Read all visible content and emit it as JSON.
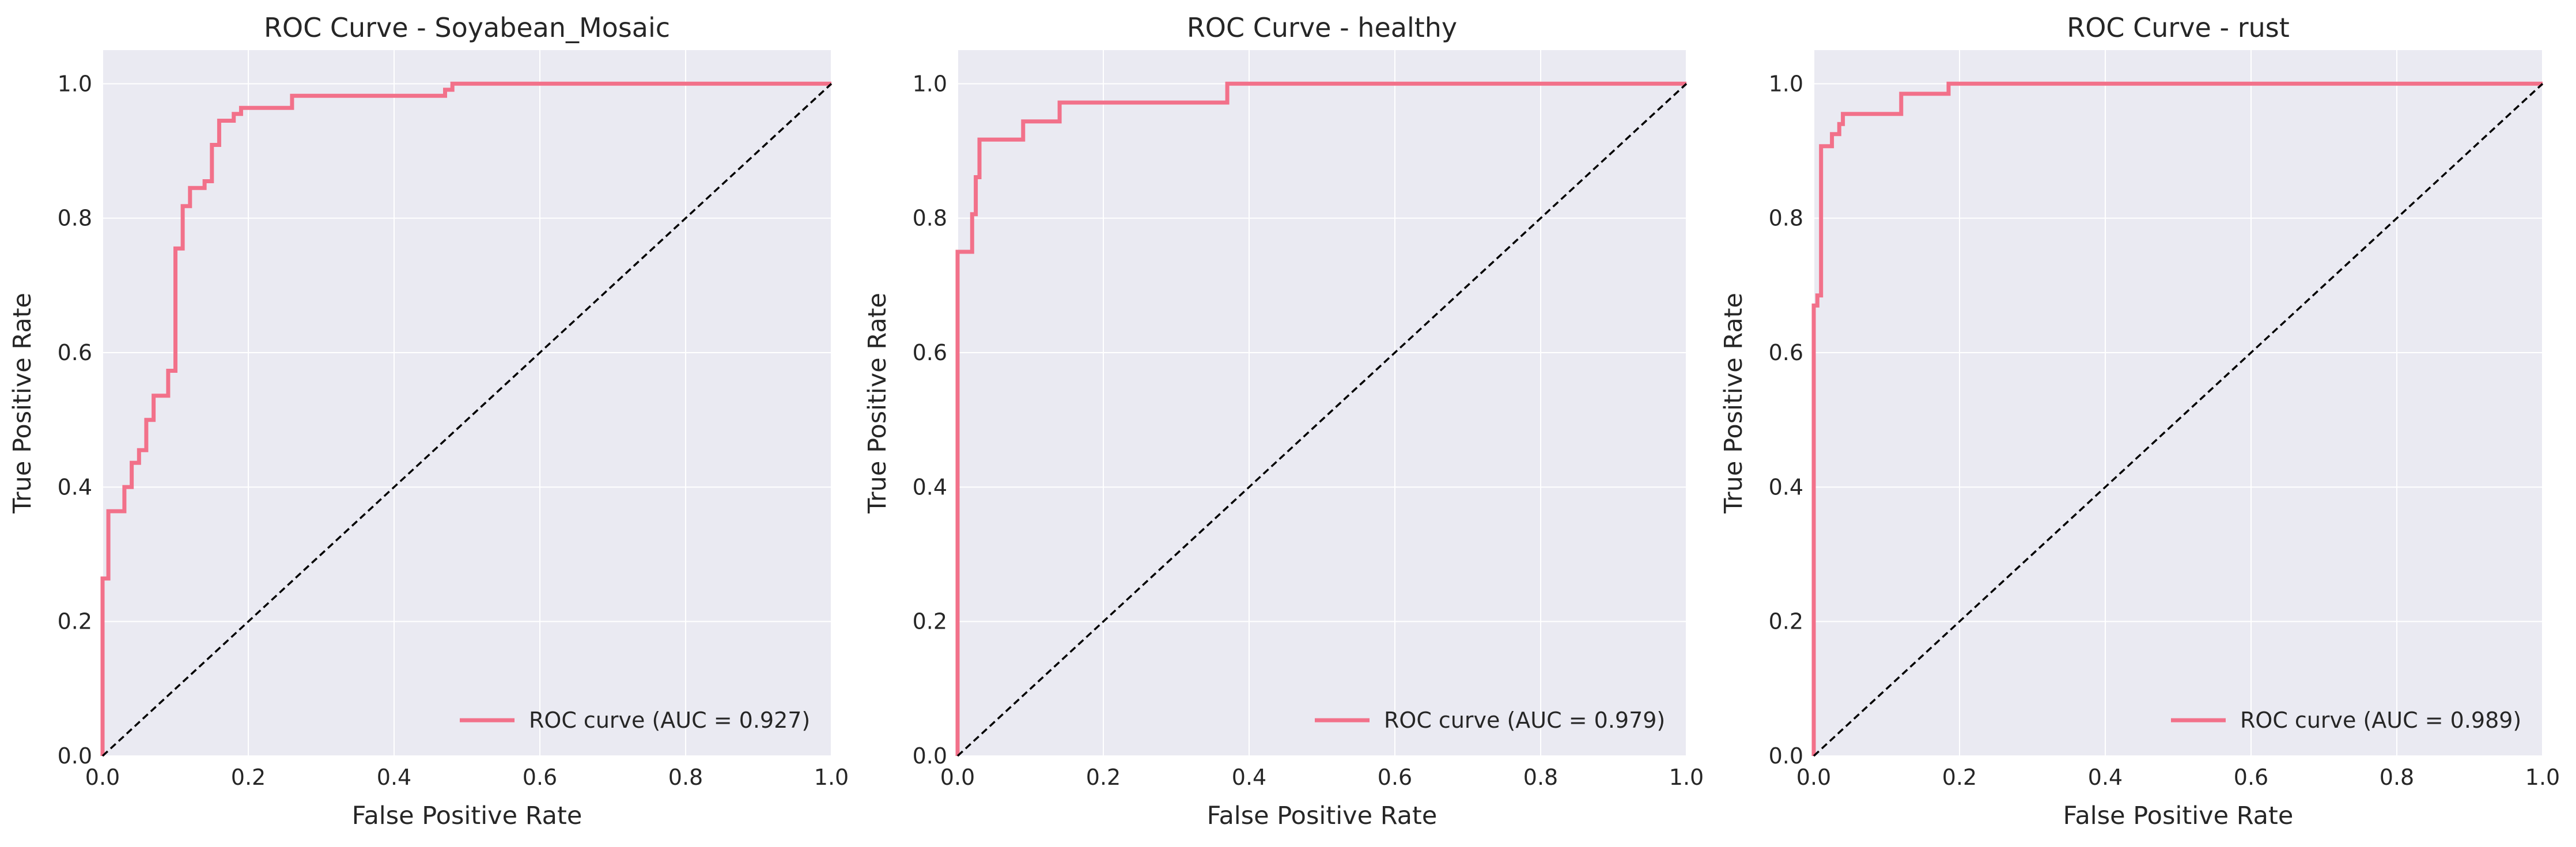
{
  "chart_data": [
    {
      "type": "line",
      "title": "ROC Curve - Soyabean_Mosaic",
      "xlabel": "False Positive Rate",
      "ylabel": "True Positive Rate",
      "xlim": [
        0.0,
        1.0
      ],
      "ylim": [
        0.0,
        1.05
      ],
      "xticks": [
        "0.0",
        "0.2",
        "0.4",
        "0.6",
        "0.8",
        "1.0"
      ],
      "yticks": [
        "0.0",
        "0.2",
        "0.4",
        "0.6",
        "0.8",
        "1.0"
      ],
      "grid": true,
      "legend": "lower-right",
      "series": [
        {
          "name": "ROC curve (AUC = 0.927)",
          "color": "#f2718a",
          "x": [
            0.0,
            0.0,
            0.008,
            0.008,
            0.03,
            0.03,
            0.04,
            0.04,
            0.05,
            0.05,
            0.06,
            0.06,
            0.07,
            0.07,
            0.09,
            0.09,
            0.1,
            0.1,
            0.11,
            0.11,
            0.12,
            0.12,
            0.14,
            0.14,
            0.15,
            0.15,
            0.16,
            0.16,
            0.18,
            0.18,
            0.19,
            0.19,
            0.26,
            0.26,
            0.47,
            0.47,
            0.48,
            0.48,
            1.0
          ],
          "y": [
            0.0,
            0.264,
            0.264,
            0.364,
            0.364,
            0.4,
            0.4,
            0.436,
            0.436,
            0.455,
            0.455,
            0.5,
            0.5,
            0.536,
            0.536,
            0.573,
            0.573,
            0.755,
            0.755,
            0.818,
            0.818,
            0.845,
            0.845,
            0.855,
            0.855,
            0.909,
            0.909,
            0.945,
            0.945,
            0.955,
            0.955,
            0.964,
            0.964,
            0.982,
            0.982,
            0.991,
            0.991,
            1.0,
            1.0
          ]
        },
        {
          "name": "",
          "color": "#000000",
          "dashed": true,
          "x": [
            0,
            1
          ],
          "y": [
            0,
            1
          ]
        }
      ]
    },
    {
      "type": "line",
      "title": "ROC Curve - healthy",
      "xlabel": "False Positive Rate",
      "ylabel": "True Positive Rate",
      "xlim": [
        0.0,
        1.0
      ],
      "ylim": [
        0.0,
        1.05
      ],
      "xticks": [
        "0.0",
        "0.2",
        "0.4",
        "0.6",
        "0.8",
        "1.0"
      ],
      "yticks": [
        "0.0",
        "0.2",
        "0.4",
        "0.6",
        "0.8",
        "1.0"
      ],
      "grid": true,
      "legend": "lower-right",
      "series": [
        {
          "name": "ROC curve (AUC = 0.979)",
          "color": "#f2718a",
          "x": [
            0.0,
            0.0,
            0.02,
            0.02,
            0.025,
            0.025,
            0.03,
            0.03,
            0.09,
            0.09,
            0.14,
            0.14,
            0.37,
            0.37,
            1.0
          ],
          "y": [
            0.0,
            0.75,
            0.75,
            0.806,
            0.806,
            0.861,
            0.861,
            0.917,
            0.917,
            0.944,
            0.944,
            0.972,
            0.972,
            1.0,
            1.0
          ]
        },
        {
          "name": "",
          "color": "#000000",
          "dashed": true,
          "x": [
            0,
            1
          ],
          "y": [
            0,
            1
          ]
        }
      ]
    },
    {
      "type": "line",
      "title": "ROC Curve - rust",
      "xlabel": "False Positive Rate",
      "ylabel": "True Positive Rate",
      "xlim": [
        0.0,
        1.0
      ],
      "ylim": [
        0.0,
        1.05
      ],
      "xticks": [
        "0.0",
        "0.2",
        "0.4",
        "0.6",
        "0.8",
        "1.0"
      ],
      "yticks": [
        "0.0",
        "0.2",
        "0.4",
        "0.6",
        "0.8",
        "1.0"
      ],
      "grid": true,
      "legend": "lower-right",
      "series": [
        {
          "name": "ROC curve (AUC = 0.989)",
          "color": "#f2718a",
          "x": [
            0.0,
            0.0,
            0.005,
            0.005,
            0.01,
            0.01,
            0.025,
            0.025,
            0.035,
            0.035,
            0.04,
            0.04,
            0.12,
            0.12,
            0.185,
            0.185,
            1.0
          ],
          "y": [
            0.0,
            0.67,
            0.67,
            0.685,
            0.685,
            0.907,
            0.907,
            0.925,
            0.925,
            0.94,
            0.94,
            0.955,
            0.955,
            0.985,
            0.985,
            1.0,
            1.0
          ]
        },
        {
          "name": "",
          "color": "#000000",
          "dashed": true,
          "x": [
            0,
            1
          ],
          "y": [
            0,
            1
          ]
        }
      ]
    }
  ]
}
